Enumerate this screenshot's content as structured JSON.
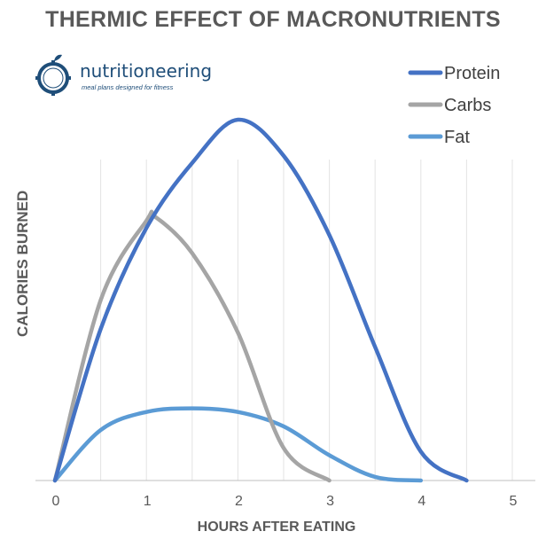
{
  "title": "THERMIC EFFECT OF MACRONUTRIENTS",
  "logo": {
    "name": "nutritioneering",
    "tagline": "meal plans designed for fitness"
  },
  "chart_data": {
    "type": "line",
    "title": "THERMIC EFFECT OF MACRONUTRIENTS",
    "xlabel": "HOURS AFTER EATING",
    "ylabel": "CALORIES BURNED",
    "xlim": [
      0,
      5
    ],
    "ylim": [
      0,
      100
    ],
    "xticks": [
      0,
      1,
      2,
      3,
      4,
      5
    ],
    "grid": "vertical",
    "legend_position": "top-right",
    "series": [
      {
        "name": "Protein",
        "color": "#4472c4",
        "x": [
          0,
          0.5,
          1,
          1.5,
          2,
          2.5,
          3,
          3.5,
          4,
          4.5
        ],
        "y": [
          0,
          42,
          70,
          88,
          100,
          90,
          68,
          37,
          8,
          0
        ]
      },
      {
        "name": "Carbs",
        "color": "#a5a5a5",
        "x": [
          0,
          0.5,
          1,
          1.1,
          1.5,
          2,
          2.5,
          3
        ],
        "y": [
          0,
          50,
          72,
          73,
          63,
          41,
          9,
          0
        ]
      },
      {
        "name": "Fat",
        "color": "#5b9bd5",
        "x": [
          0,
          0.5,
          1,
          1.5,
          2,
          2.5,
          3,
          3.5,
          4
        ],
        "y": [
          0,
          14,
          19,
          20,
          19,
          15,
          7,
          1,
          0
        ]
      }
    ]
  }
}
